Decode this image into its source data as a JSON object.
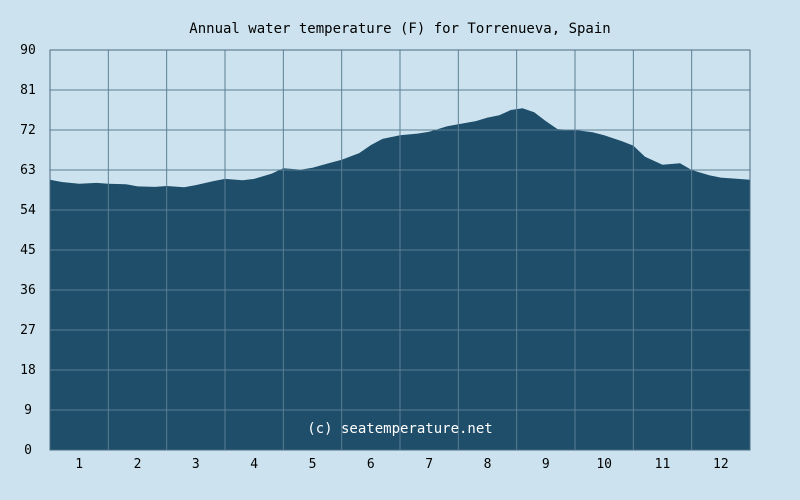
{
  "chart_data": {
    "type": "area",
    "title": "Annual water temperature (F) for Torrenueva, Spain",
    "watermark": "(c) seatemperature.net",
    "xlabel": "",
    "ylabel": "",
    "x_ticks": [
      "1",
      "2",
      "3",
      "4",
      "5",
      "6",
      "7",
      "8",
      "9",
      "10",
      "11",
      "12"
    ],
    "y_ticks": [
      "0",
      "9",
      "18",
      "27",
      "36",
      "45",
      "54",
      "63",
      "72",
      "81",
      "90"
    ],
    "xlim": [
      0.5,
      12.5
    ],
    "ylim": [
      0,
      90
    ],
    "grid": true,
    "colors": {
      "fill": "#1e4e6a",
      "grid": "#5b7f96",
      "background": "#cce3ef"
    },
    "series": [
      {
        "x": [
          0.5,
          0.7,
          1.0,
          1.3,
          1.5,
          1.8,
          2.0,
          2.3,
          2.5,
          2.8,
          3.0,
          3.3,
          3.5,
          3.8,
          4.0,
          4.3,
          4.5,
          4.8,
          5.0,
          5.3,
          5.5,
          5.8,
          6.0,
          6.2,
          6.5,
          6.8,
          7.0,
          7.3,
          7.5,
          7.8,
          8.0,
          8.2,
          8.4,
          8.6,
          8.8,
          9.0,
          9.2,
          9.5,
          9.8,
          10.0,
          10.3,
          10.5,
          10.7,
          11.0,
          11.3,
          11.5,
          11.8,
          12.0,
          12.3,
          12.5
        ],
        "y": [
          60.8,
          60.3,
          59.9,
          60.1,
          59.9,
          59.8,
          59.3,
          59.2,
          59.4,
          59.1,
          59.6,
          60.5,
          61.0,
          60.7,
          61.0,
          62.2,
          63.4,
          63.1,
          63.5,
          64.6,
          65.3,
          66.8,
          68.6,
          70.0,
          70.8,
          71.2,
          71.6,
          72.8,
          73.3,
          74.0,
          74.8,
          75.3,
          76.5,
          76.9,
          76.0,
          74.0,
          72.2,
          72.0,
          71.5,
          70.8,
          69.5,
          68.5,
          66.0,
          64.2,
          64.5,
          63.0,
          61.8,
          61.3,
          61.0,
          60.8
        ]
      }
    ]
  }
}
